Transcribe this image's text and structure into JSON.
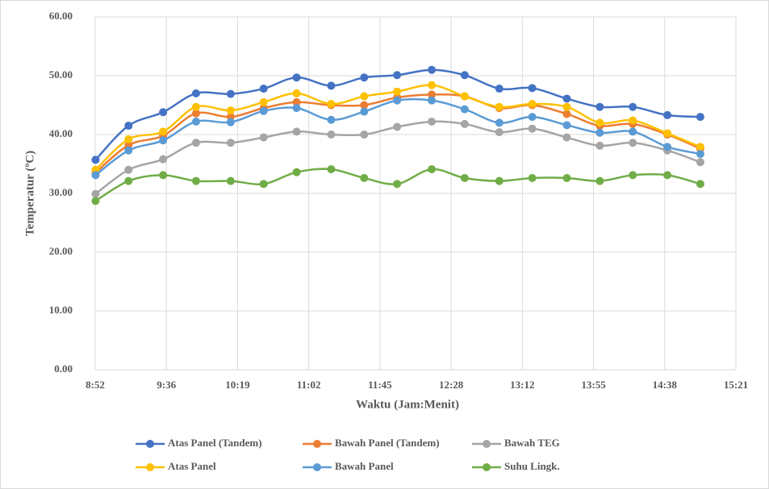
{
  "chart_data": {
    "type": "line",
    "smooth": true,
    "grid": true,
    "xlabel": "Waktu (Jam:Menit)",
    "ylabel": "Temperatur (ºC)",
    "x": [
      533,
      553,
      574,
      594,
      615,
      635,
      655,
      676,
      696,
      716,
      737,
      757,
      778,
      798,
      819,
      839,
      859,
      880,
      900
    ],
    "xlim": [
      532.8,
      921.6
    ],
    "xticks": [
      {
        "value": 532.8,
        "label": "8:52"
      },
      {
        "value": 576,
        "label": "9:36"
      },
      {
        "value": 619.2,
        "label": "10:19"
      },
      {
        "value": 662.4,
        "label": "11:02"
      },
      {
        "value": 705.6,
        "label": "11:45"
      },
      {
        "value": 748.8,
        "label": "12:28"
      },
      {
        "value": 792,
        "label": "13:12"
      },
      {
        "value": 835.2,
        "label": "13:55"
      },
      {
        "value": 878.4,
        "label": "14:38"
      },
      {
        "value": 921.6,
        "label": "15:21"
      }
    ],
    "ylim": [
      0,
      60
    ],
    "yticks": [
      {
        "value": 0,
        "label": "0.00"
      },
      {
        "value": 10,
        "label": "10.00"
      },
      {
        "value": 20,
        "label": "20.00"
      },
      {
        "value": 30,
        "label": "30.00"
      },
      {
        "value": 40,
        "label": "40.00"
      },
      {
        "value": 50,
        "label": "50.00"
      },
      {
        "value": 60,
        "label": "60.00"
      }
    ],
    "series": [
      {
        "name": "Atas Panel (Tandem)",
        "color": "#4472c4",
        "values": [
          35.7,
          41.5,
          43.8,
          47.0,
          46.9,
          47.8,
          49.7,
          48.3,
          49.7,
          50.1,
          51.0,
          50.1,
          47.8,
          47.9,
          46.1,
          44.7,
          44.7,
          43.3,
          43.0
        ]
      },
      {
        "name": "Bawah Panel (Tandem)",
        "color": "#ed7d31",
        "values": [
          33.5,
          38.2,
          39.8,
          43.6,
          43.0,
          44.5,
          45.5,
          45.0,
          45.0,
          46.3,
          46.8,
          46.5,
          44.5,
          45.0,
          43.5,
          41.5,
          41.8,
          40.0,
          37.6
        ]
      },
      {
        "name": "Bawah TEG",
        "color": "#a5a5a5",
        "values": [
          29.9,
          34.0,
          35.8,
          38.6,
          38.6,
          39.5,
          40.5,
          40.0,
          40.0,
          41.3,
          42.2,
          41.8,
          40.4,
          41.0,
          39.5,
          38.1,
          38.6,
          37.3,
          35.3
        ]
      },
      {
        "name": "Atas Panel",
        "color": "#ffc000",
        "values": [
          34.0,
          39.2,
          40.5,
          44.7,
          44.1,
          45.5,
          47.0,
          45.2,
          46.5,
          47.3,
          48.4,
          46.5,
          44.7,
          45.2,
          44.7,
          42.0,
          42.4,
          40.2,
          37.9
        ]
      },
      {
        "name": "Bawah Panel",
        "color": "#5b9bd5",
        "values": [
          33.1,
          37.3,
          39.0,
          42.2,
          42.1,
          44.0,
          44.5,
          42.5,
          43.9,
          45.8,
          45.8,
          44.3,
          42.0,
          43.0,
          41.6,
          40.3,
          40.5,
          37.9,
          36.7
        ]
      },
      {
        "name": "Suhu Lingk.",
        "color": "#70ad47",
        "values": [
          28.7,
          32.1,
          33.1,
          32.1,
          32.1,
          31.6,
          33.6,
          34.1,
          32.6,
          31.6,
          34.1,
          32.6,
          32.1,
          32.6,
          32.6,
          32.1,
          33.1,
          33.1,
          31.6
        ]
      }
    ]
  }
}
